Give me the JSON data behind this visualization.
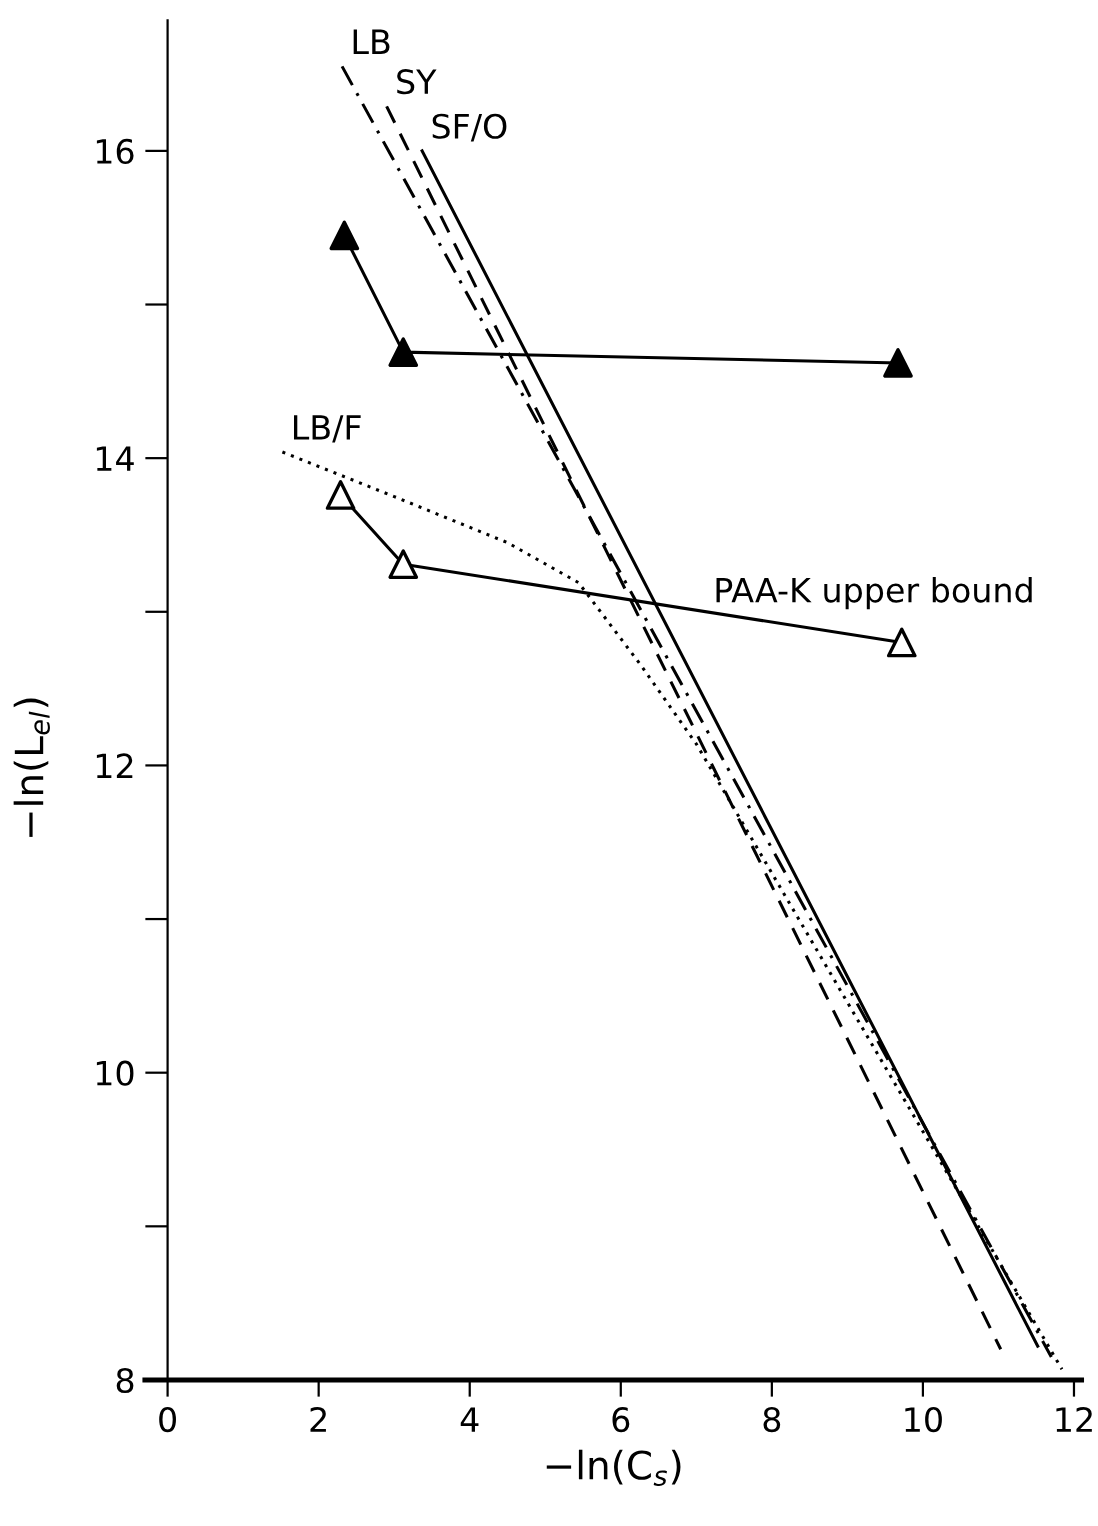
{
  "chart_data": {
    "type": "line",
    "xlabel": "−ln(C$_{s}$)",
    "ylabel": "−ln(L$_{el}$)",
    "xlim": [
      -0.3,
      12.1
    ],
    "xticks": [
      0,
      2,
      4,
      6,
      8,
      10,
      12
    ],
    "ylim": [
      8,
      16.85
    ],
    "yticks": [
      8,
      {
        "value": 9,
        "label": null
      },
      10,
      {
        "value": 11,
        "label": null
      },
      12,
      {
        "value": 13,
        "label": null
      },
      14,
      {
        "value": 15,
        "label": null
      },
      16
    ],
    "grid": false,
    "series": [
      {
        "color": "#000000",
        "line_style": "solid",
        "marker": "triangle",
        "x": [
          2.34,
          3.12,
          9.67
        ],
        "values": [
          15.45,
          14.69,
          14.62
        ]
      },
      {
        "name": "PAA-K upper bound",
        "color": "#000000",
        "colors": [
          "#ffffff",
          "#ffffff",
          "#ffffff"
        ],
        "line_style": "solid",
        "marker": "triangle",
        "x": [
          2.29,
          3.12,
          9.72
        ],
        "values": [
          13.76,
          13.31,
          12.8
        ]
      },
      {
        "name": "LB",
        "color": "#000000",
        "line_style": "dashdot",
        "marker": "none",
        "x": [
          2.31,
          11.7
        ],
        "values": [
          16.55,
          8.15
        ]
      },
      {
        "name": "SY",
        "color": "#000000",
        "line_style": "dashed",
        "marker": "none",
        "x": [
          2.9,
          11.03
        ],
        "values": [
          16.29,
          8.2
        ]
      },
      {
        "name": "SF/O",
        "color": "#000000",
        "line_style": "solid",
        "marker": "none",
        "x": [
          3.37,
          11.52
        ],
        "values": [
          16.0,
          8.22
        ]
      },
      {
        "name": "LB/F",
        "color": "#000000",
        "line_style": "dotted",
        "marker": "none",
        "x": [
          1.52,
          3.0,
          4.5,
          5.44,
          6.27,
          7.0,
          11.84
        ],
        "values": [
          14.04,
          13.75,
          13.45,
          13.19,
          12.65,
          12.14,
          8.07
        ]
      }
    ]
  }
}
